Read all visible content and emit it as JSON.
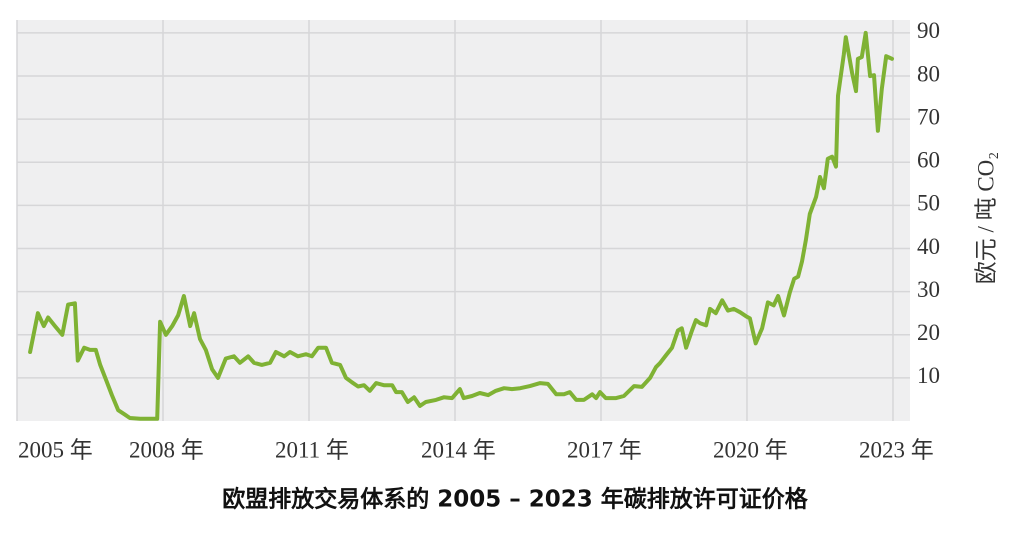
{
  "chart_data": {
    "type": "line",
    "title": "欧盟排放交易体系的 2005 – 2023 年碳排放许可证价格",
    "y_axis_label": "欧元 / 吨 CO₂",
    "color": "#7fb234",
    "grid": true,
    "x": [
      2005.27,
      2005.43,
      2005.55,
      2005.64,
      2005.78,
      2005.93,
      2006.05,
      2006.19,
      2006.25,
      2006.38,
      2006.5,
      2006.62,
      2006.71,
      2006.83,
      2006.95,
      2007.08,
      2007.2,
      2007.32,
      2007.53,
      2007.88,
      2007.94,
      2008.06,
      2008.19,
      2008.31,
      2008.43,
      2008.56,
      2008.64,
      2008.76,
      2008.88,
      2009.01,
      2009.13,
      2009.29,
      2009.46,
      2009.58,
      2009.75,
      2009.87,
      2010.03,
      2010.2,
      2010.32,
      2010.49,
      2010.61,
      2010.77,
      2010.94,
      2011.06,
      2011.19,
      2011.35,
      2011.47,
      2011.64,
      2011.76,
      2011.88,
      2012.01,
      2012.13,
      2012.25,
      2012.38,
      2012.54,
      2012.71,
      2012.79,
      2012.91,
      2013.03,
      2013.16,
      2013.28,
      2013.4,
      2013.61,
      2013.77,
      2013.94,
      2014.1,
      2014.18,
      2014.35,
      2014.51,
      2014.68,
      2014.84,
      2015.01,
      2015.17,
      2015.34,
      2015.54,
      2015.75,
      2015.91,
      2016.08,
      2016.24,
      2016.36,
      2016.49,
      2016.65,
      2016.82,
      2016.9,
      2016.98,
      2017.1,
      2017.31,
      2017.47,
      2017.68,
      2017.84,
      2018.01,
      2018.13,
      2018.21,
      2018.34,
      2018.46,
      2018.58,
      2018.66,
      2018.75,
      2018.87,
      2018.95,
      2019.03,
      2019.16,
      2019.24,
      2019.36,
      2019.49,
      2019.61,
      2019.73,
      2019.86,
      2019.98,
      2020.06,
      2020.18,
      2020.31,
      2020.43,
      2020.55,
      2020.64,
      2020.76,
      2020.88,
      2020.97,
      2021.05,
      2021.13,
      2021.21,
      2021.29,
      2021.42,
      2021.5,
      2021.58,
      2021.66,
      2021.75,
      2021.83,
      2021.87,
      2021.99,
      2022.03,
      2022.16,
      2022.24,
      2022.28,
      2022.36,
      2022.44,
      2022.53,
      2022.61,
      2022.69,
      2022.77,
      2022.86,
      2022.98
    ],
    "values": [
      16,
      25,
      22,
      24,
      22,
      20,
      27,
      27.3,
      14,
      17,
      16.5,
      16.5,
      13,
      9.5,
      6,
      2.5,
      1.6,
      0.7,
      0.5,
      0.5,
      23,
      20,
      22,
      24.5,
      29,
      22,
      25,
      19,
      16.5,
      12,
      10,
      14.5,
      15,
      13.5,
      15,
      13.5,
      13,
      13.5,
      16,
      15,
      16,
      15,
      15.5,
      15,
      17,
      17,
      13.5,
      13,
      10,
      9,
      8,
      8.3,
      7,
      8.8,
      8.3,
      8.3,
      6.7,
      6.7,
      4.4,
      5.5,
      3.5,
      4.4,
      4.9,
      5.5,
      5.3,
      7.4,
      5.3,
      5.8,
      6.5,
      6,
      7,
      7.6,
      7.4,
      7.6,
      8.1,
      8.8,
      8.6,
      6.2,
      6.2,
      6.7,
      4.9,
      4.9,
      6.2,
      5.3,
      6.7,
      5.3,
      5.3,
      5.8,
      8.1,
      7.9,
      10,
      12.5,
      13.4,
      15.3,
      17,
      21,
      21.5,
      17,
      21,
      23.4,
      22.7,
      22.2,
      26,
      25,
      28,
      25.6,
      26,
      25.2,
      24.3,
      23.8,
      18,
      21.5,
      27.5,
      26.8,
      29,
      24.5,
      29.8,
      33,
      33.5,
      37,
      42,
      48,
      52,
      56.6,
      54,
      60.8,
      61.3,
      59,
      75.4,
      85,
      89,
      80.7,
      76.5,
      84,
      84.4,
      90,
      80,
      80.2,
      67.3,
      77,
      84.6,
      84
    ],
    "xlim": [
      2005,
      2023.35
    ],
    "xticks": [
      {
        "value": 2005,
        "label": "2005 年"
      },
      {
        "value": 2008,
        "label": "2008 年"
      },
      {
        "value": 2011,
        "label": "2011 年"
      },
      {
        "value": 2014,
        "label": "2014 年"
      },
      {
        "value": 2017,
        "label": "2017 年"
      },
      {
        "value": 2020,
        "label": "2020 年"
      },
      {
        "value": 2023,
        "label": "2023 年"
      }
    ],
    "ylim": [
      0,
      93
    ],
    "yticks": [
      10,
      20,
      30,
      40,
      50,
      60,
      70,
      80,
      90
    ]
  }
}
